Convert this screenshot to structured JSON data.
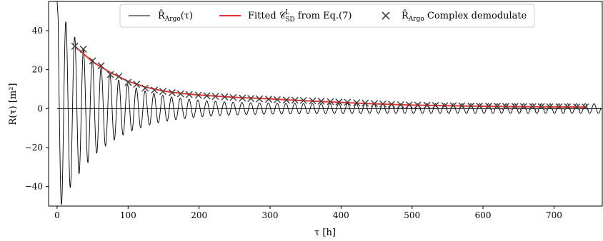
{
  "chart_data": {
    "type": "line",
    "xlabel": "τ [h]",
    "ylabel": "R(τ) [m²]",
    "xlim": [
      -12,
      768
    ],
    "ylim": [
      -50,
      55
    ],
    "xticks": [
      0,
      100,
      200,
      300,
      400,
      500,
      600,
      700
    ],
    "yticks": [
      -40,
      -20,
      0,
      20,
      40
    ],
    "xtick_labels": [
      "0",
      "100",
      "200",
      "300",
      "400",
      "500",
      "600",
      "700"
    ],
    "ytick_labels": [
      "−40",
      "−20",
      "0",
      "20",
      "40"
    ],
    "grid": false,
    "legend_position": "top-center",
    "zero_line": true,
    "series": [
      {
        "name": "R̄Argo(τ)",
        "kind": "oscillating-line",
        "color": "#000000",
        "period_h": 12.4,
        "envelope": {
          "amplitude0": 52,
          "decay_h": 60,
          "floor": 2.5
        },
        "value_at_0": 55
      },
      {
        "name": "Fitted 𝒞ᴸSD from Eq.(7)",
        "kind": "fit-line",
        "color": "#e8342e",
        "x": [
          25,
          50,
          75,
          100,
          125,
          150,
          175,
          200,
          250,
          300,
          350,
          400,
          450,
          500,
          550,
          600,
          650,
          700,
          745
        ],
        "y": [
          32,
          24,
          18.5,
          14,
          11,
          9,
          7.8,
          7,
          5.8,
          5,
          4,
          3.2,
          2.4,
          1.8,
          1.5,
          1.2,
          1.0,
          0.9,
          0.8
        ]
      },
      {
        "name": "R̄Argo Complex demodulate",
        "kind": "markers",
        "marker": "x",
        "color": "#444444",
        "x": [
          25,
          37,
          50,
          62,
          75,
          87,
          100,
          112,
          124,
          137,
          149,
          162,
          174,
          186,
          199,
          211,
          223,
          236,
          248,
          261,
          273,
          285,
          298,
          310,
          323,
          335,
          347,
          360,
          372,
          385,
          397,
          409,
          422,
          434,
          447,
          459,
          471,
          484,
          496,
          508,
          521,
          533,
          546,
          558,
          570,
          583,
          595,
          608,
          620,
          632,
          645,
          657,
          670,
          682,
          694,
          707,
          719,
          732,
          744
        ],
        "y": [
          32,
          30.5,
          24.5,
          22,
          17.5,
          16.5,
          13.5,
          12.5,
          10.5,
          9.5,
          8.8,
          8.2,
          7.6,
          7.2,
          6.9,
          6.6,
          6.3,
          6.0,
          5.7,
          5.4,
          5.2,
          5.0,
          4.8,
          4.6,
          4.4,
          4.3,
          4.2,
          4.0,
          3.8,
          3.6,
          3.4,
          3.2,
          3.0,
          2.8,
          2.6,
          2.4,
          2.2,
          2.0,
          1.9,
          1.8,
          1.7,
          1.6,
          1.5,
          1.5,
          1.4,
          1.3,
          1.3,
          1.2,
          1.2,
          1.1,
          1.1,
          1.0,
          1.0,
          1.0,
          0.9,
          0.9,
          0.9,
          0.8,
          0.8
        ]
      }
    ]
  },
  "legend": {
    "items": [
      {
        "main": "R̄",
        "sub": "Argo",
        "rest": "(τ)"
      },
      {
        "main": "Fitted 𝒞",
        "sub": "SD",
        "sup": "L",
        "rest": " from Eq.(7)"
      },
      {
        "main": "R̄",
        "sub": "Argo",
        "rest": " Complex demodulate"
      }
    ]
  }
}
